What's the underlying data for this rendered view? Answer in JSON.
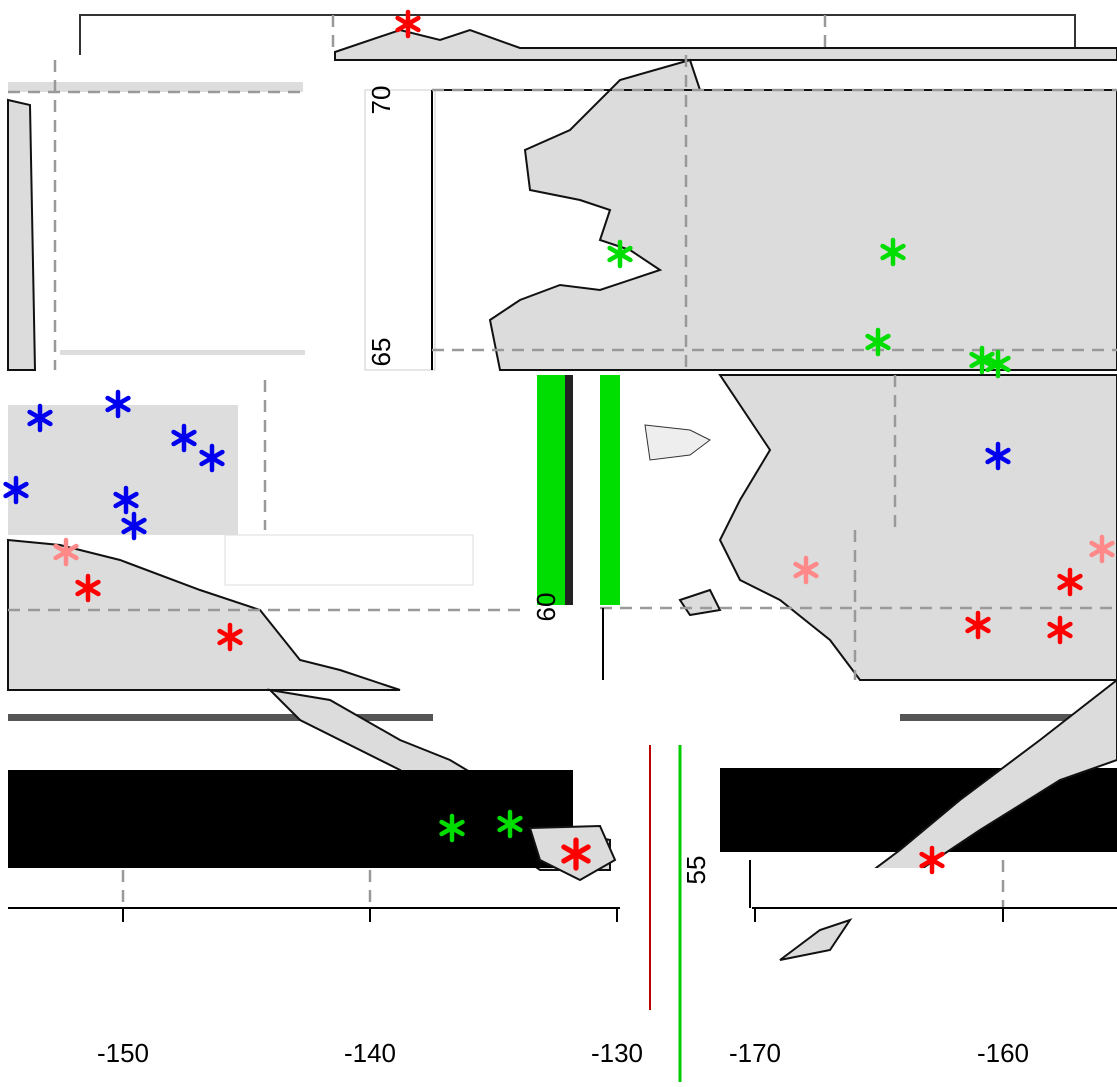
{
  "map": {
    "y_axis_labels": [
      "70",
      "65",
      "60",
      "55"
    ],
    "x_axis_labels_left": [
      "-150",
      "-140",
      "-130"
    ],
    "x_axis_labels_right": [
      "-170",
      "-160"
    ]
  }
}
